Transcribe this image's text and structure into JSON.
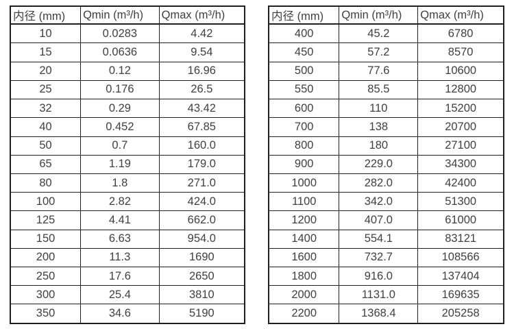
{
  "page": {
    "background_color": "#ffffff",
    "text_color": "#3f3f3f",
    "border_color": "#1f1f1f"
  },
  "tables": [
    {
      "name": "flow-spec-table-small-diameters",
      "headers": [
        "内径 (mm)",
        "Qmin (m³/h)",
        "Qmax (m³/h)"
      ],
      "rows": [
        [
          "10",
          "0.0283",
          "4.42"
        ],
        [
          "15",
          "0.0636",
          "9.54"
        ],
        [
          "20",
          "0.12",
          "16.96"
        ],
        [
          "25",
          "0.176",
          "26.5"
        ],
        [
          "32",
          "0.29",
          "43.42"
        ],
        [
          "40",
          "0.452",
          "67.85"
        ],
        [
          "50",
          "0.7",
          "160.0"
        ],
        [
          "65",
          "1.19",
          "179.0"
        ],
        [
          "80",
          "1.8",
          "271.0"
        ],
        [
          "100",
          "2.82",
          "424.0"
        ],
        [
          "125",
          "4.41",
          "662.0"
        ],
        [
          "150",
          "6.63",
          "954.0"
        ],
        [
          "200",
          "11.3",
          "1690"
        ],
        [
          "250",
          "17.6",
          "2650"
        ],
        [
          "300",
          "25.4",
          "3810"
        ],
        [
          "350",
          "34.6",
          "5190"
        ]
      ]
    },
    {
      "name": "flow-spec-table-large-diameters",
      "headers": [
        "内径 (mm)",
        "Qmin (m³/h)",
        "Qmax (m³/h)"
      ],
      "rows": [
        [
          "400",
          "45.2",
          "6780"
        ],
        [
          "450",
          "57.2",
          "8570"
        ],
        [
          "500",
          "77.6",
          "10600"
        ],
        [
          "550",
          "85.5",
          "12800"
        ],
        [
          "600",
          "110",
          "15200"
        ],
        [
          "700",
          "138",
          "20700"
        ],
        [
          "800",
          "180",
          "27100"
        ],
        [
          "900",
          "229.0",
          "34300"
        ],
        [
          "1000",
          "282.0",
          "42400"
        ],
        [
          "1100",
          "342.0",
          "51300"
        ],
        [
          "1200",
          "407.0",
          "61000"
        ],
        [
          "1400",
          "554.1",
          "83121"
        ],
        [
          "1600",
          "732.7",
          "108566"
        ],
        [
          "1800",
          "916.0",
          "137404"
        ],
        [
          "2000",
          "1131.0",
          "169635"
        ],
        [
          "2200",
          "1368.4",
          "205258"
        ]
      ]
    }
  ]
}
